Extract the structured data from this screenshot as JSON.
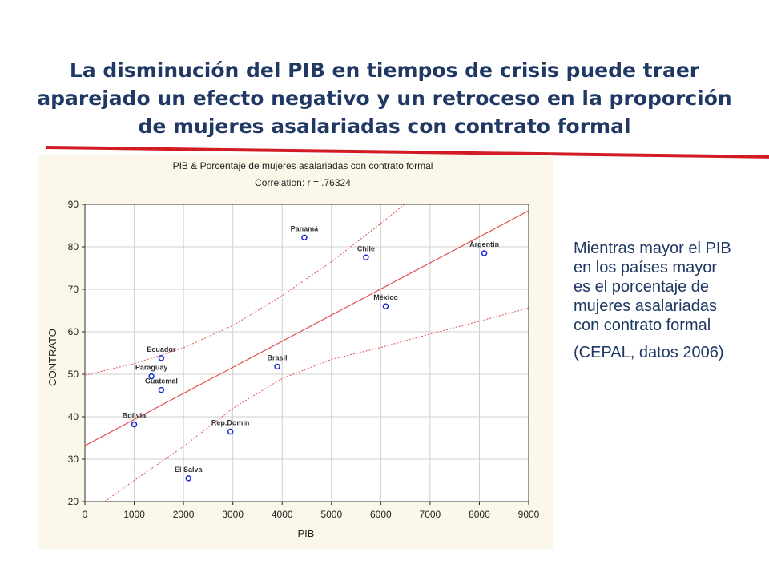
{
  "slide": {
    "title": "La disminución del PIB en tiempos de crisis puede traer aparejado un efecto negativo y un retroceso en la proporción de mujeres asalariadas con contrato formal",
    "side_text": "Mientras mayor el PIB en los países mayor es el porcentaje de mujeres asalariadas con contrato formal",
    "source": "(CEPAL, datos 2006)",
    "accent_color": "#d01c22",
    "title_color": "#1f3864"
  },
  "chart_data": {
    "type": "scatter",
    "title": "PIB & Porcentaje de mujeres asalariadas con contrato formal",
    "subtitle": "Correlation: r = .76324",
    "xlabel": "PIB",
    "ylabel": "CONTRATO",
    "xlim": [
      0,
      9000
    ],
    "ylim": [
      20,
      90
    ],
    "xticks": [
      "0",
      "1000",
      "2000",
      "3000",
      "4000",
      "5000",
      "6000",
      "7000",
      "8000",
      "9000"
    ],
    "yticks": [
      "20",
      "30",
      "40",
      "50",
      "60",
      "70",
      "80",
      "90"
    ],
    "grid": true,
    "point_color": "#1a2ad6",
    "line_color": "#e05050",
    "points": [
      {
        "label": "Panamá",
        "x": 4450,
        "y": 82.2
      },
      {
        "label": "Chile",
        "x": 5700,
        "y": 77.5
      },
      {
        "label": "Argentin",
        "x": 8100,
        "y": 78.5
      },
      {
        "label": "México",
        "x": 6100,
        "y": 66.0
      },
      {
        "label": "Ecuador",
        "x": 1550,
        "y": 53.8
      },
      {
        "label": "Paraguay",
        "x": 1350,
        "y": 49.5
      },
      {
        "label": "Guatemal",
        "x": 1550,
        "y": 46.3
      },
      {
        "label": "Brasil",
        "x": 3900,
        "y": 51.8
      },
      {
        "label": "Bolivia",
        "x": 1000,
        "y": 38.2
      },
      {
        "label": "Rep.Domin",
        "x": 2950,
        "y": 36.5
      },
      {
        "label": "El Salva",
        "x": 2100,
        "y": 25.5
      }
    ],
    "fit_line": [
      [
        0,
        33.2
      ],
      [
        9000,
        88.5
      ]
    ],
    "ci_upper": [
      [
        0,
        49.8
      ],
      [
        1000,
        52.5
      ],
      [
        2000,
        56.2
      ],
      [
        3000,
        61.5
      ],
      [
        4000,
        68.5
      ],
      [
        5000,
        76.5
      ],
      [
        6000,
        85.5
      ],
      [
        6800,
        93.0
      ]
    ],
    "ci_lower": [
      [
        400,
        20.0
      ],
      [
        1000,
        25.0
      ],
      [
        2000,
        33.0
      ],
      [
        3000,
        42.0
      ],
      [
        4000,
        49.0
      ],
      [
        5000,
        53.5
      ],
      [
        6000,
        56.3
      ],
      [
        7000,
        59.5
      ],
      [
        8000,
        62.5
      ],
      [
        9000,
        65.6
      ]
    ]
  }
}
